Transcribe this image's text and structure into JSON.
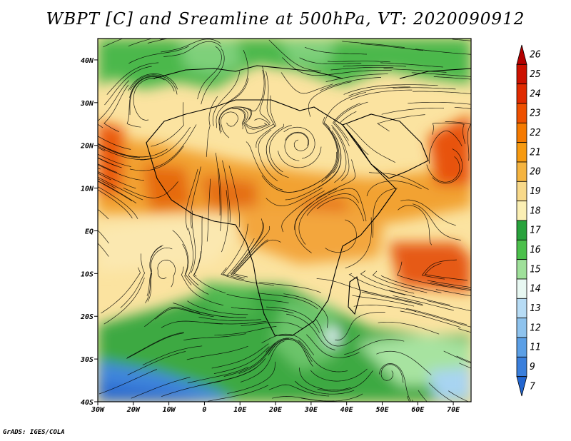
{
  "title": "WBPT [C] and Sreamline at 500hPa, VT: 2020090912",
  "credit": "GrADS: IGES/COLA",
  "map": {
    "lon_range": [
      -30,
      75
    ],
    "lat_range": [
      -40,
      45
    ],
    "lat_ticks": [
      {
        "value": 40,
        "label": "40N"
      },
      {
        "value": 30,
        "label": "30N"
      },
      {
        "value": 20,
        "label": "20N"
      },
      {
        "value": 10,
        "label": "10N"
      },
      {
        "value": 0,
        "label": "EQ"
      },
      {
        "value": -10,
        "label": "10S"
      },
      {
        "value": -20,
        "label": "20S"
      },
      {
        "value": -30,
        "label": "30S"
      },
      {
        "value": -40,
        "label": "40S"
      }
    ],
    "lon_ticks": [
      {
        "value": -30,
        "label": "30W"
      },
      {
        "value": -20,
        "label": "20W"
      },
      {
        "value": -10,
        "label": "10W"
      },
      {
        "value": 0,
        "label": "0"
      },
      {
        "value": 10,
        "label": "10E"
      },
      {
        "value": 20,
        "label": "20E"
      },
      {
        "value": 30,
        "label": "30E"
      },
      {
        "value": 40,
        "label": "40E"
      },
      {
        "value": 50,
        "label": "50E"
      },
      {
        "value": 60,
        "label": "60E"
      },
      {
        "value": 70,
        "label": "70E"
      }
    ]
  },
  "colorbar": {
    "labels": [
      "26",
      "25",
      "24",
      "23",
      "22",
      "21",
      "20",
      "19",
      "18",
      "17",
      "16",
      "15",
      "14",
      "13",
      "12",
      "11",
      "9",
      "7"
    ],
    "colors": [
      "#b30000",
      "#cc1100",
      "#e02a00",
      "#ee5000",
      "#f57a00",
      "#f79a10",
      "#f5b440",
      "#f8d98a",
      "#fbefb4",
      "#28a23c",
      "#4cc04c",
      "#9fe09a",
      "#e8f8f2",
      "#b7dcf5",
      "#8ec3ee",
      "#5b9fe6",
      "#3a7fdc",
      "#2266d0"
    ]
  }
}
